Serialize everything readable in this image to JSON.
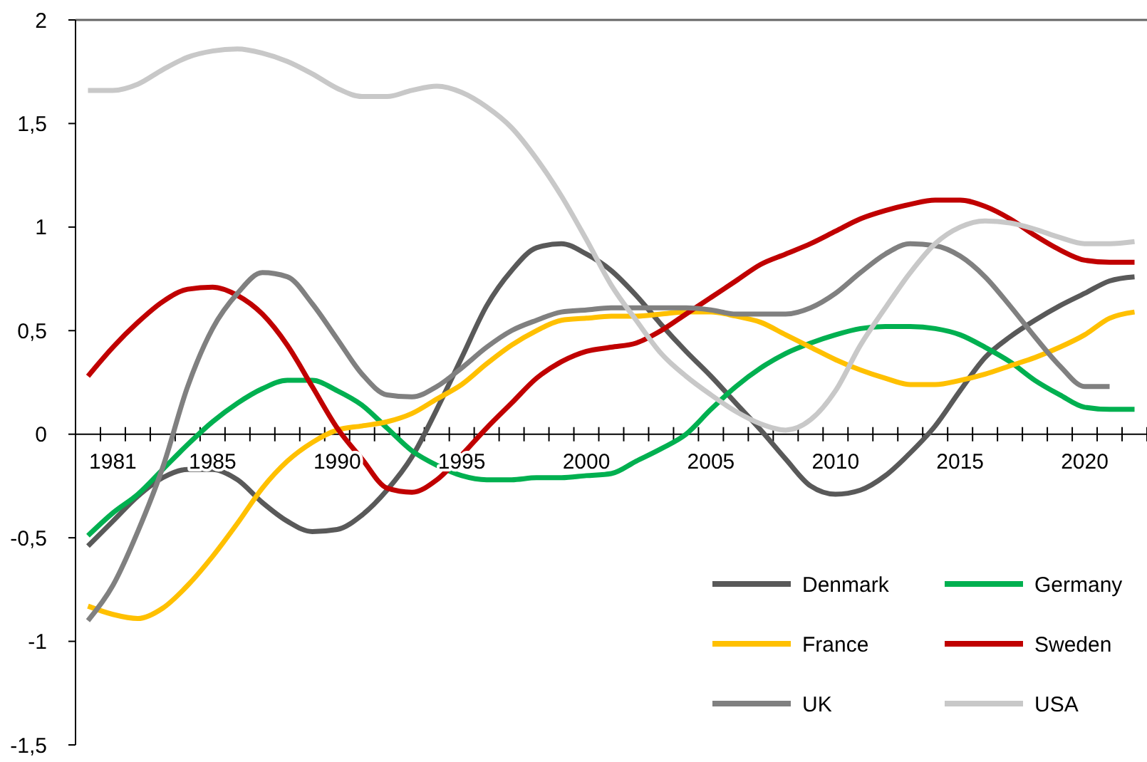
{
  "chart_data": {
    "type": "line",
    "categories": [
      null,
      "1981",
      null,
      null,
      null,
      "1985",
      null,
      null,
      null,
      null,
      "1990",
      null,
      null,
      null,
      null,
      "1995",
      null,
      null,
      null,
      null,
      "2000",
      null,
      null,
      null,
      null,
      "2005",
      null,
      null,
      null,
      null,
      "2010",
      null,
      null,
      null,
      null,
      "2015",
      null,
      null,
      null,
      null,
      "2020",
      null,
      null
    ],
    "series": [
      {
        "name": "Denmark",
        "color": "#595959",
        "values": [
          -0.54,
          -0.42,
          -0.3,
          -0.21,
          -0.17,
          -0.17,
          -0.22,
          -0.33,
          -0.42,
          -0.47,
          -0.46,
          -0.39,
          -0.27,
          -0.11,
          0.12,
          0.37,
          0.62,
          0.79,
          0.9,
          0.92,
          0.87,
          0.79,
          0.67,
          0.53,
          0.4,
          0.28,
          0.15,
          0.02,
          -0.12,
          -0.25,
          -0.29,
          -0.27,
          -0.2,
          -0.09,
          0.04,
          0.21,
          0.37,
          0.47,
          0.55,
          0.62,
          0.68,
          0.74,
          0.76
        ]
      },
      {
        "name": "Germany",
        "color": "#00b050",
        "values": [
          -0.49,
          -0.38,
          -0.29,
          -0.17,
          -0.05,
          0.06,
          0.15,
          0.22,
          0.26,
          0.26,
          0.21,
          0.14,
          0.03,
          -0.08,
          -0.15,
          -0.2,
          -0.22,
          -0.22,
          -0.21,
          -0.21,
          -0.2,
          -0.19,
          -0.13,
          -0.07,
          0.0,
          0.12,
          0.23,
          0.32,
          0.39,
          0.44,
          0.48,
          0.51,
          0.52,
          0.52,
          0.51,
          0.48,
          0.42,
          0.35,
          0.26,
          0.19,
          0.13,
          0.12,
          0.12
        ]
      },
      {
        "name": "France",
        "color": "#ffc000",
        "values": [
          -0.83,
          -0.87,
          -0.89,
          -0.84,
          -0.73,
          -0.59,
          -0.43,
          -0.26,
          -0.13,
          -0.04,
          0.02,
          0.04,
          0.06,
          0.1,
          0.17,
          0.24,
          0.34,
          0.43,
          0.5,
          0.55,
          0.56,
          0.57,
          0.57,
          0.58,
          0.59,
          0.59,
          0.57,
          0.54,
          0.48,
          0.42,
          0.36,
          0.31,
          0.27,
          0.24,
          0.24,
          0.26,
          0.29,
          0.33,
          0.37,
          0.42,
          0.48,
          0.56,
          0.59
        ]
      },
      {
        "name": "Sweden",
        "color": "#c00000",
        "values": [
          0.28,
          0.42,
          0.54,
          0.64,
          0.7,
          0.71,
          0.67,
          0.58,
          0.43,
          0.23,
          0.03,
          -0.12,
          -0.26,
          -0.28,
          -0.22,
          -0.1,
          0.03,
          0.15,
          0.27,
          0.35,
          0.4,
          0.42,
          0.44,
          0.5,
          0.58,
          0.66,
          0.74,
          0.82,
          0.87,
          0.92,
          0.98,
          1.04,
          1.08,
          1.11,
          1.13,
          1.13,
          1.1,
          1.04,
          0.96,
          0.89,
          0.84,
          0.83,
          0.83
        ]
      },
      {
        "name": "UK",
        "color": "#808080",
        "values": [
          -0.9,
          -0.73,
          -0.47,
          -0.16,
          0.23,
          0.51,
          0.68,
          0.78,
          0.76,
          0.63,
          0.46,
          0.29,
          0.19,
          0.18,
          0.23,
          0.32,
          0.42,
          0.5,
          0.55,
          0.59,
          0.6,
          0.61,
          0.61,
          0.61,
          0.61,
          0.6,
          0.58,
          0.58,
          0.58,
          0.61,
          0.68,
          0.78,
          0.87,
          0.92,
          0.91,
          0.86,
          0.76,
          0.62,
          0.47,
          0.33,
          0.23,
          0.23,
          null
        ]
      },
      {
        "name": "USA",
        "color": "#c8c8c8",
        "values": [
          1.66,
          1.66,
          1.69,
          1.76,
          1.82,
          1.85,
          1.86,
          1.84,
          1.8,
          1.74,
          1.67,
          1.63,
          1.63,
          1.66,
          1.68,
          1.65,
          1.58,
          1.48,
          1.33,
          1.15,
          0.94,
          0.72,
          0.55,
          0.39,
          0.28,
          0.19,
          0.11,
          0.05,
          0.02,
          0.07,
          0.21,
          0.43,
          0.61,
          0.78,
          0.92,
          1.0,
          1.03,
          1.02,
          0.99,
          0.95,
          0.92,
          0.92,
          0.93
        ]
      }
    ],
    "ylim": [
      -1.5,
      2
    ],
    "yticks": [
      {
        "value": -1.5,
        "label": "-1,5"
      },
      -1,
      {
        "value": -0.5,
        "label": "-0,5"
      },
      0,
      {
        "value": 0.5,
        "label": "0,5"
      },
      1,
      {
        "value": 1.5,
        "label": "1,5"
      },
      2
    ],
    "grid": false,
    "legend": "bottom right",
    "marker": "none",
    "line_style": "solid"
  }
}
